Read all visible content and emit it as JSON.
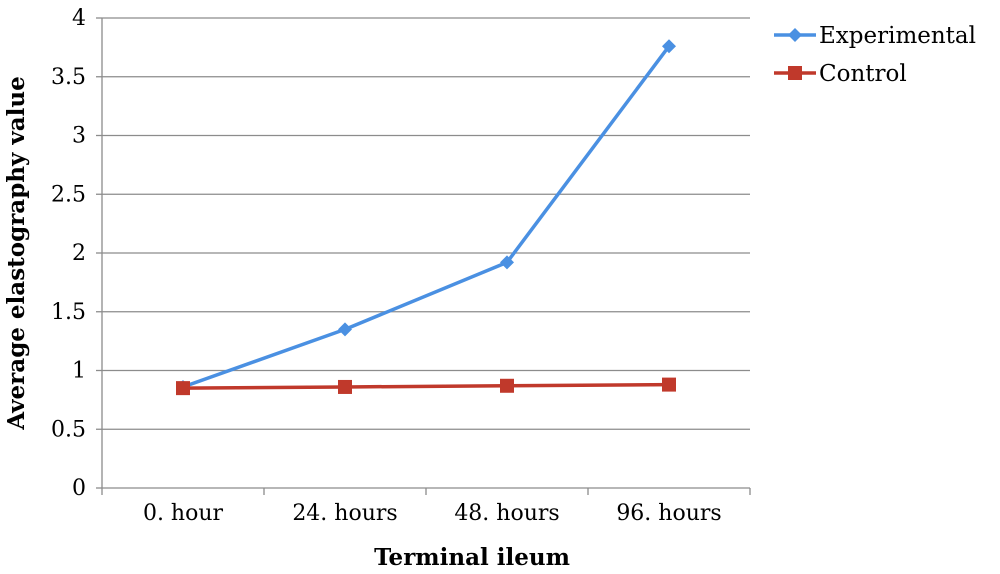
{
  "chart_data": {
    "type": "line",
    "xlabel": "Terminal ileum",
    "ylabel": "Average elastography value",
    "categories": [
      "0. hour",
      "24. hours",
      "48. hours",
      "96. hours"
    ],
    "ylim": [
      0,
      4
    ],
    "yticks": [
      "0",
      "0.5",
      "1",
      "1.5",
      "2",
      "2.5",
      "3",
      "3.5",
      "4"
    ],
    "grid": true,
    "legend": "top-right",
    "series": [
      {
        "name": "Experimental",
        "values": [
          0.86,
          1.35,
          1.92,
          3.76
        ],
        "color": "#4a90e2",
        "marker": "diamond"
      },
      {
        "name": "Control",
        "values": [
          0.85,
          0.86,
          0.87,
          0.88
        ],
        "color": "#c0392b",
        "marker": "square"
      }
    ]
  }
}
